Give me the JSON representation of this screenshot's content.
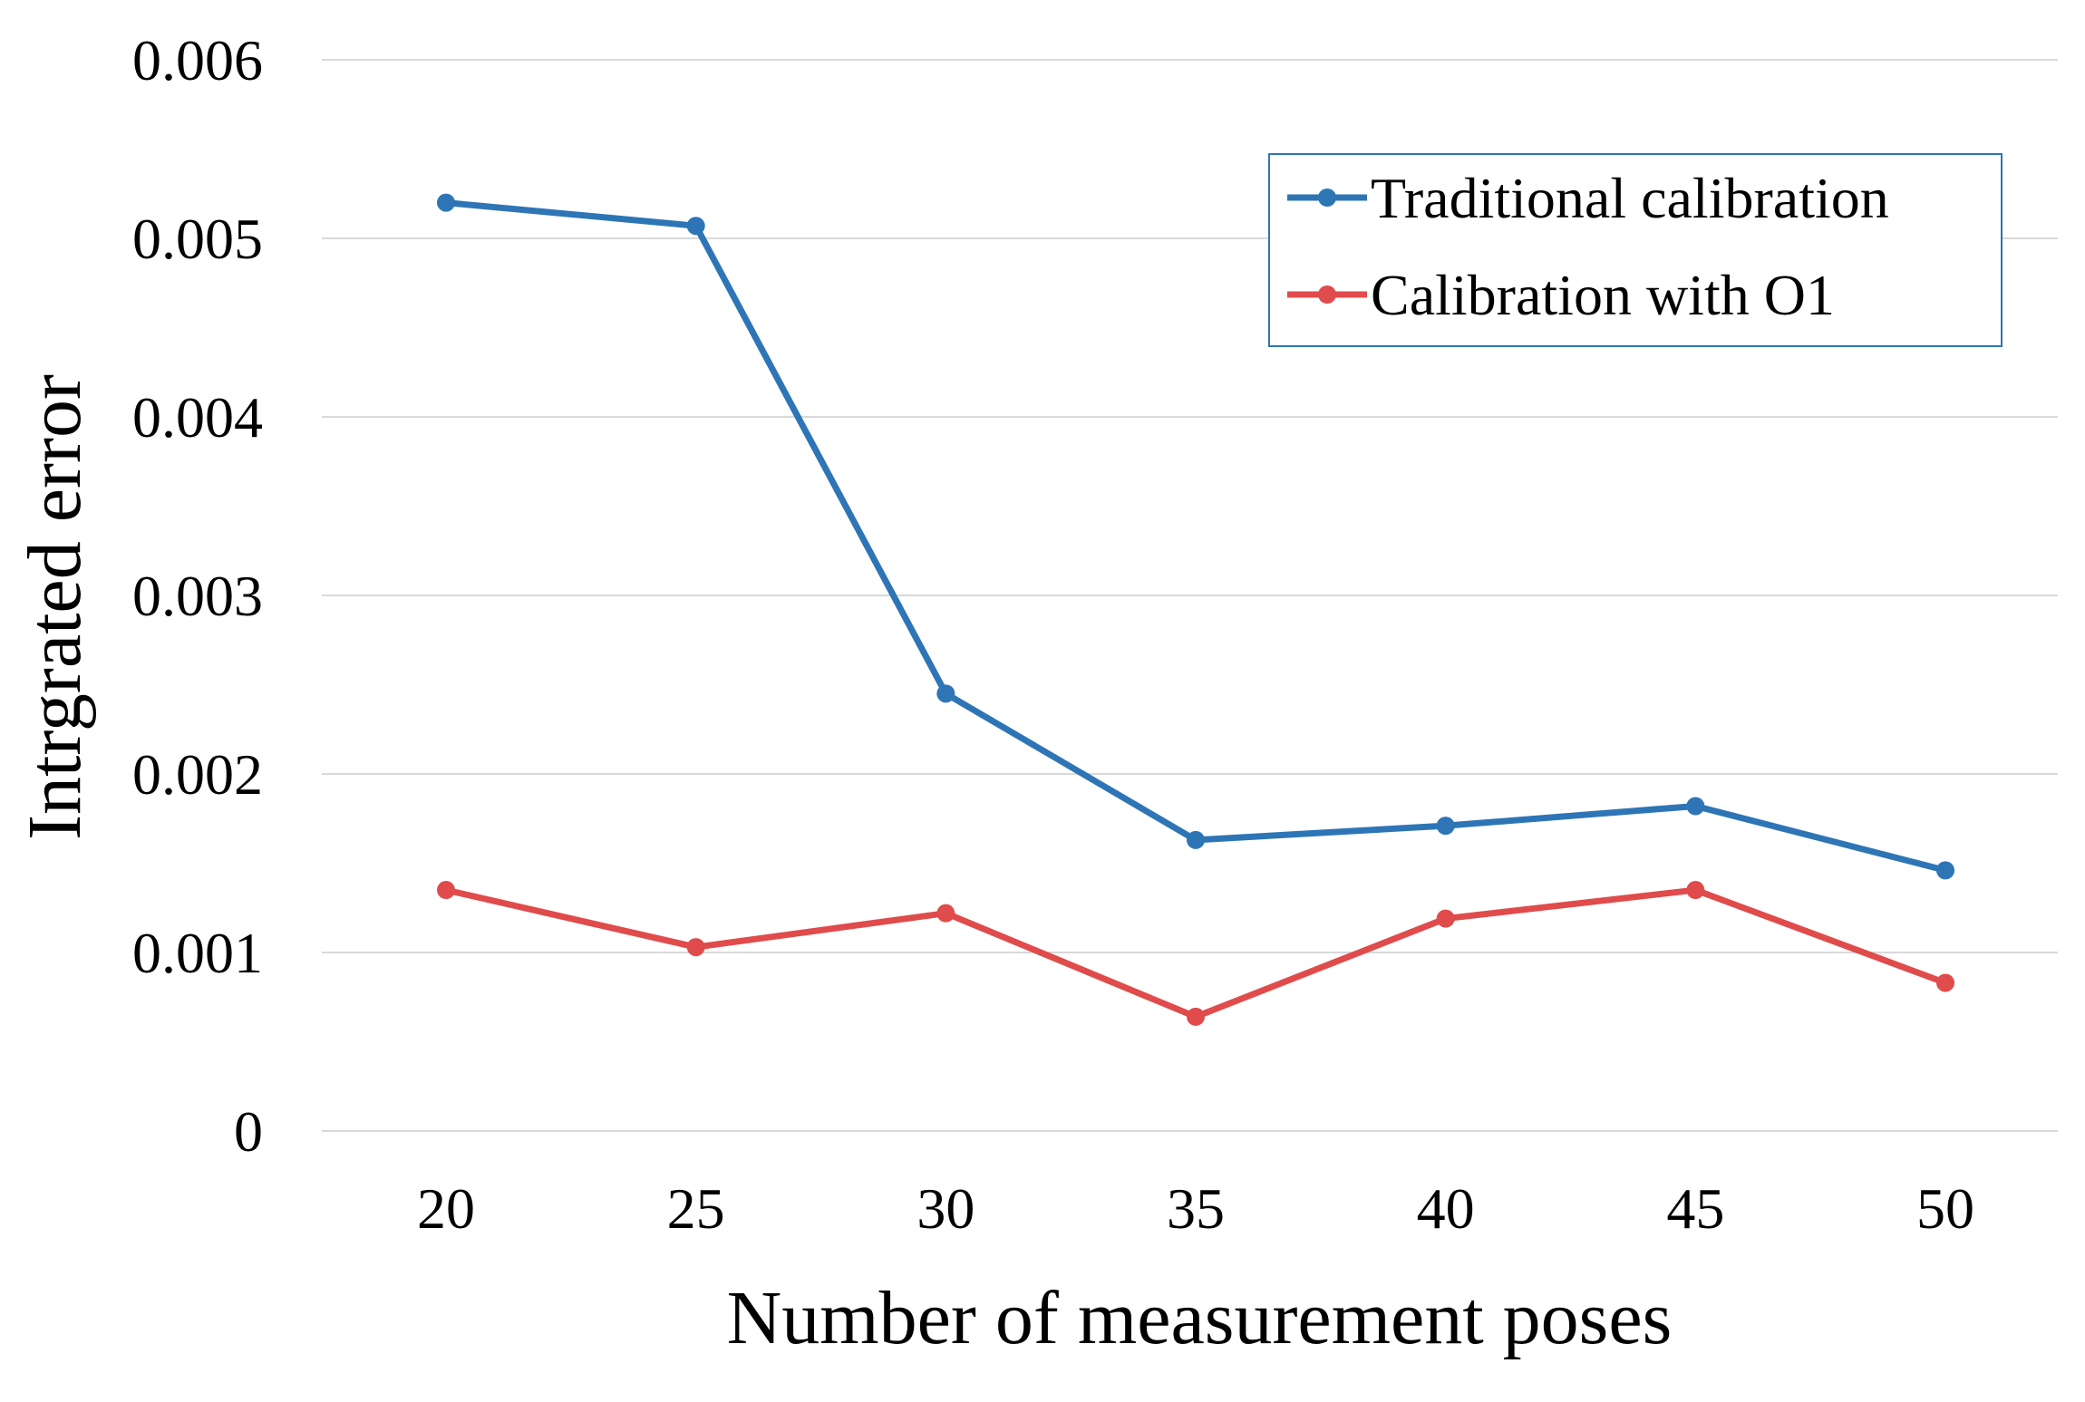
{
  "chart_data": {
    "type": "line",
    "title": "",
    "xlabel": "Number of measurement poses",
    "ylabel": "Intrgrated error",
    "categories": [
      "20",
      "25",
      "30",
      "35",
      "40",
      "45",
      "50"
    ],
    "ylim": [
      0,
      0.006
    ],
    "yticks": [
      "0",
      "0.001",
      "0.002",
      "0.003",
      "0.004",
      "0.005",
      "0.006"
    ],
    "ytick_values": [
      0,
      0.001,
      0.002,
      0.003,
      0.004,
      0.005,
      0.006
    ],
    "grid": true,
    "legend_position": "top-right",
    "series": [
      {
        "name": "Traditional calibration",
        "color": "#2e75b6",
        "values": [
          0.0052,
          0.00507,
          0.00245,
          0.00163,
          0.00171,
          0.00182,
          0.00146
        ]
      },
      {
        "name": "Calibration with O1",
        "color": "#e04b4b",
        "values": [
          0.00135,
          0.00103,
          0.00122,
          0.00064,
          0.00119,
          0.00135,
          0.00083
        ]
      }
    ]
  }
}
